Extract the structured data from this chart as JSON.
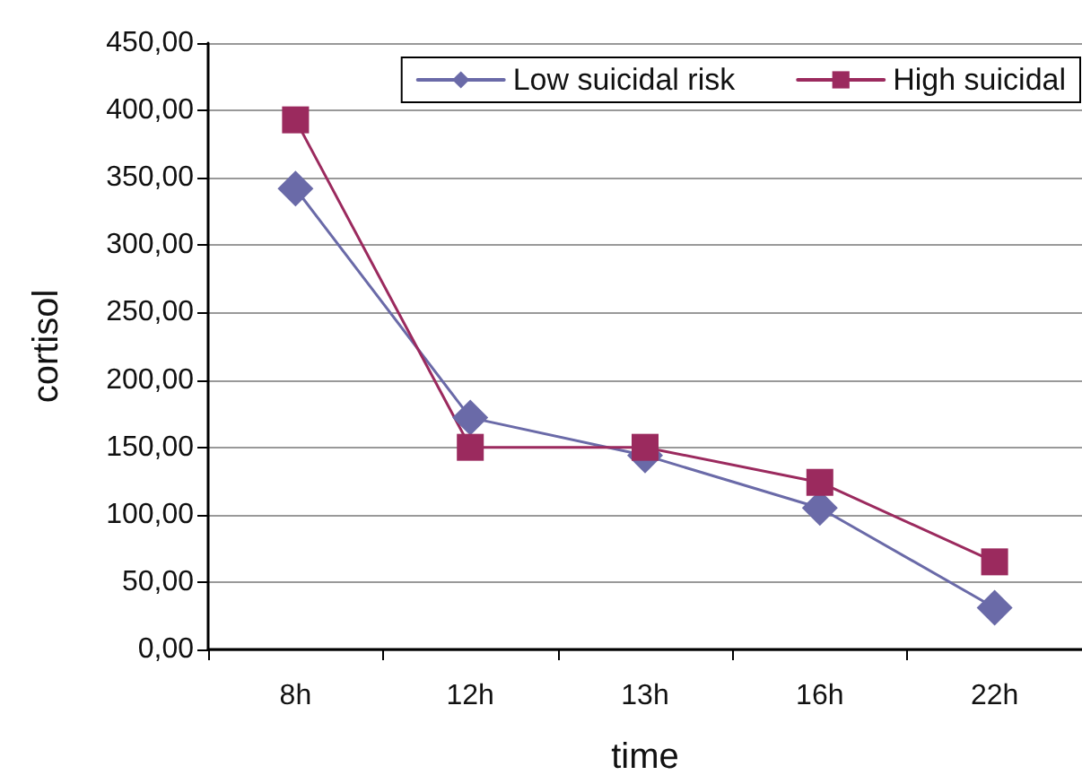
{
  "chart_data": {
    "type": "line",
    "xlabel": "time",
    "ylabel": "cortisol",
    "categories": [
      "8h",
      "12h",
      "13h",
      "16h",
      "22h"
    ],
    "series": [
      {
        "name": "Low suicidal risk",
        "color": "#6a6aa8",
        "marker": "diamond",
        "values": [
          342,
          172,
          144,
          105,
          31
        ]
      },
      {
        "name": "High suicidal",
        "color": "#9b2a5e",
        "marker": "square",
        "values": [
          393,
          150,
          150,
          124,
          65
        ]
      }
    ],
    "ylim": [
      0,
      450
    ],
    "yticks": [
      {
        "value": 0,
        "label": "0,00"
      },
      {
        "value": 50,
        "label": "50,00"
      },
      {
        "value": 100,
        "label": "100,00"
      },
      {
        "value": 150,
        "label": "150,00"
      },
      {
        "value": 200,
        "label": "200,00"
      },
      {
        "value": 250,
        "label": "250,00"
      },
      {
        "value": 300,
        "label": "300,00"
      },
      {
        "value": 350,
        "label": "350,00"
      },
      {
        "value": 400,
        "label": "400,00"
      },
      {
        "value": 450,
        "label": "450,00"
      }
    ],
    "grid": "y",
    "legend": "top right",
    "line_style": "solid"
  }
}
